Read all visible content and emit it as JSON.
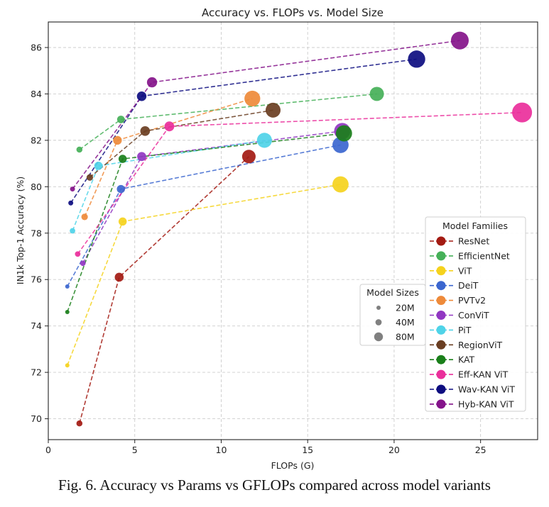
{
  "caption": "Fig. 6. Accuracy vs Params vs GFLOPs compared across model variants",
  "chart_data": {
    "type": "scatter",
    "title": "Accuracy vs. FLOPs vs. Model Size",
    "xlabel": "FLOPs (G)",
    "ylabel": "IN1k Top-1 Accuracy (%)",
    "xlim": [
      0,
      28.3
    ],
    "ylim": [
      69.1,
      87.1
    ],
    "xticks": [
      0,
      5,
      10,
      15,
      20,
      25
    ],
    "yticks": [
      70,
      72,
      74,
      76,
      78,
      80,
      82,
      84,
      86
    ],
    "grid": true,
    "legend_title": "Model Families",
    "legend_position": "lower right",
    "size_legend": {
      "title": "Model Sizes",
      "entries": [
        {
          "label": "20M",
          "params": 20
        },
        {
          "label": "40M",
          "params": 40
        },
        {
          "label": "80M",
          "params": 80
        }
      ]
    },
    "series": [
      {
        "name": "ResNet",
        "color": "#a31a12",
        "points": [
          {
            "x": 1.8,
            "y": 69.8,
            "params": 12
          },
          {
            "x": 4.1,
            "y": 76.1,
            "params": 26
          },
          {
            "x": 11.6,
            "y": 81.3,
            "params": 60
          }
        ]
      },
      {
        "name": "EfficientNet",
        "color": "#45b058",
        "points": [
          {
            "x": 1.8,
            "y": 81.6,
            "params": 12
          },
          {
            "x": 4.2,
            "y": 82.9,
            "params": 19
          },
          {
            "x": 19.0,
            "y": 84.0,
            "params": 66
          }
        ]
      },
      {
        "name": "ViT",
        "color": "#f5d21d",
        "points": [
          {
            "x": 1.1,
            "y": 72.3,
            "params": 6
          },
          {
            "x": 4.3,
            "y": 78.5,
            "params": 22
          },
          {
            "x": 16.9,
            "y": 80.1,
            "params": 86
          }
        ]
      },
      {
        "name": "DeiT",
        "color": "#3b66cf",
        "points": [
          {
            "x": 1.1,
            "y": 75.7,
            "params": 6
          },
          {
            "x": 4.2,
            "y": 79.9,
            "params": 22
          },
          {
            "x": 16.9,
            "y": 81.8,
            "params": 86
          }
        ]
      },
      {
        "name": "PVTv2",
        "color": "#ee8a3a",
        "points": [
          {
            "x": 2.1,
            "y": 78.7,
            "params": 14
          },
          {
            "x": 4.0,
            "y": 82.0,
            "params": 25
          },
          {
            "x": 11.8,
            "y": 83.8,
            "params": 82
          }
        ]
      },
      {
        "name": "ConViT",
        "color": "#9137c2",
        "points": [
          {
            "x": 2.0,
            "y": 76.7,
            "params": 10
          },
          {
            "x": 5.4,
            "y": 81.3,
            "params": 27
          },
          {
            "x": 17.0,
            "y": 82.4,
            "params": 86
          }
        ]
      },
      {
        "name": "PiT",
        "color": "#4fd3e8",
        "points": [
          {
            "x": 1.4,
            "y": 78.1,
            "params": 10
          },
          {
            "x": 2.9,
            "y": 80.9,
            "params": 23
          },
          {
            "x": 12.5,
            "y": 82.0,
            "params": 74
          }
        ]
      },
      {
        "name": "RegionViT",
        "color": "#6a3e22",
        "points": [
          {
            "x": 2.4,
            "y": 80.4,
            "params": 14
          },
          {
            "x": 5.6,
            "y": 82.4,
            "params": 31
          },
          {
            "x": 13.0,
            "y": 83.3,
            "params": 73
          }
        ]
      },
      {
        "name": "KAT",
        "color": "#1a7f1a",
        "points": [
          {
            "x": 1.1,
            "y": 74.6,
            "params": 6
          },
          {
            "x": 4.3,
            "y": 81.2,
            "params": 22
          },
          {
            "x": 17.1,
            "y": 82.3,
            "params": 86
          }
        ]
      },
      {
        "name": "Eff-KAN ViT",
        "color": "#ea2f9b",
        "points": [
          {
            "x": 1.7,
            "y": 77.1,
            "params": 10
          },
          {
            "x": 7.0,
            "y": 82.6,
            "params": 32
          },
          {
            "x": 27.4,
            "y": 83.2,
            "params": 130
          }
        ]
      },
      {
        "name": "Wav-KAN ViT",
        "color": "#0d0d80",
        "points": [
          {
            "x": 1.3,
            "y": 79.3,
            "params": 8
          },
          {
            "x": 5.4,
            "y": 83.9,
            "params": 30
          },
          {
            "x": 21.3,
            "y": 85.5,
            "params": 98
          }
        ]
      },
      {
        "name": "Hyb-KAN ViT",
        "color": "#84138a",
        "points": [
          {
            "x": 1.4,
            "y": 79.9,
            "params": 8
          },
          {
            "x": 6.0,
            "y": 84.5,
            "params": 34
          },
          {
            "x": 23.8,
            "y": 86.3,
            "params": 104
          }
        ]
      }
    ]
  }
}
